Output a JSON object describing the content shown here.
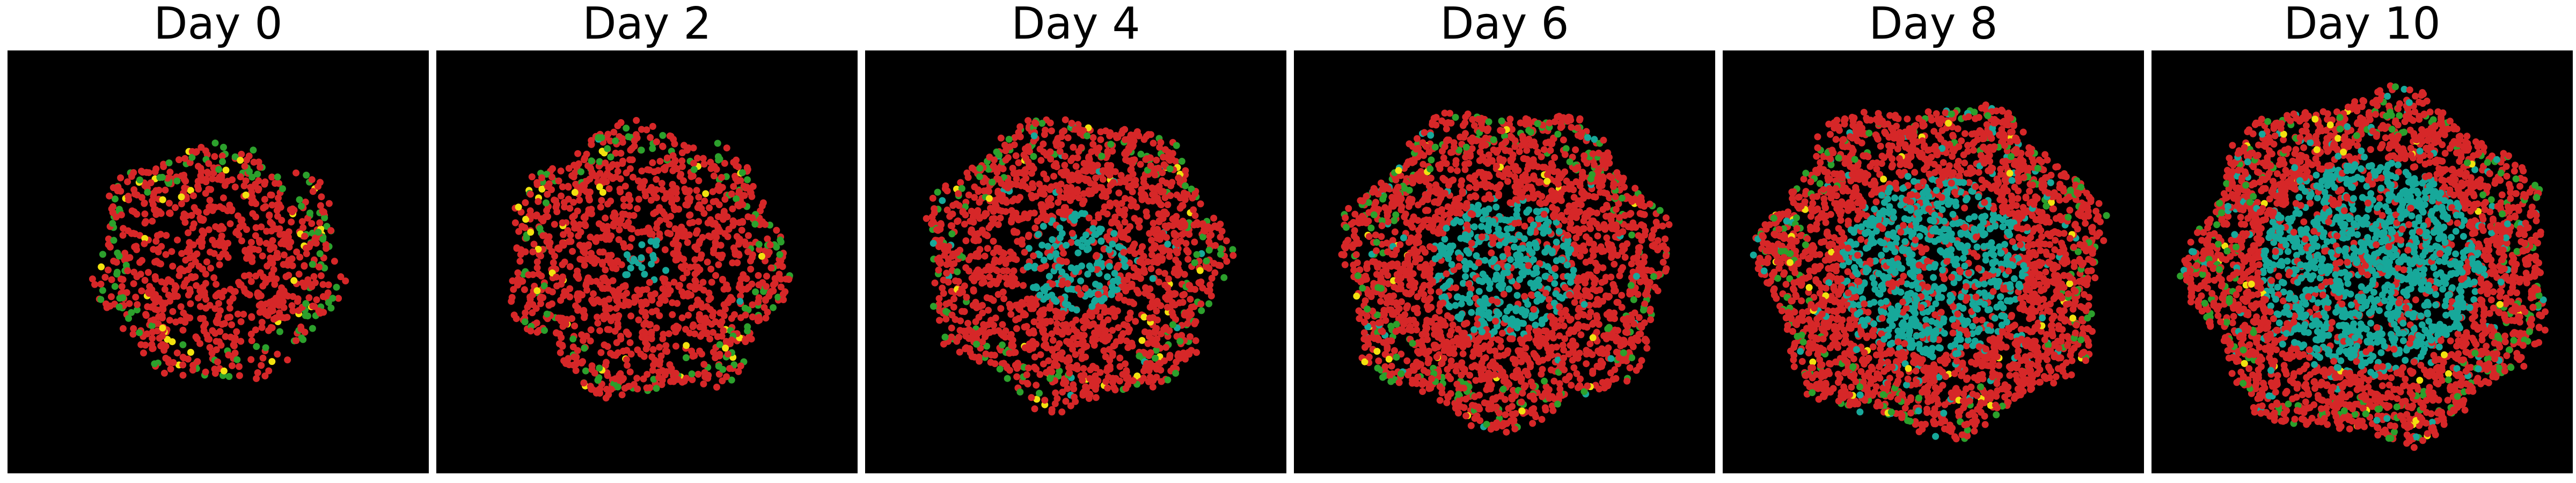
{
  "figure": {
    "panels": [
      {
        "title": "Day 0",
        "colony_radius": 0.29,
        "core_radius": 0.0,
        "cell_count": 900,
        "core_fraction": 0.0,
        "green_fraction": 0.1,
        "yellow_fraction": 0.02
      },
      {
        "title": "Day 2",
        "colony_radius": 0.33,
        "core_radius": 0.06,
        "cell_count": 1300,
        "core_fraction": 0.02,
        "green_fraction": 0.07,
        "yellow_fraction": 0.015
      },
      {
        "title": "Day 4",
        "colony_radius": 0.35,
        "core_radius": 0.12,
        "cell_count": 1800,
        "core_fraction": 0.08,
        "green_fraction": 0.06,
        "yellow_fraction": 0.01
      },
      {
        "title": "Day 6",
        "colony_radius": 0.38,
        "core_radius": 0.17,
        "cell_count": 2400,
        "core_fraction": 0.16,
        "green_fraction": 0.05,
        "yellow_fraction": 0.01
      },
      {
        "title": "Day 8",
        "colony_radius": 0.4,
        "core_radius": 0.22,
        "cell_count": 3000,
        "core_fraction": 0.26,
        "green_fraction": 0.04,
        "yellow_fraction": 0.008
      },
      {
        "title": "Day 10",
        "colony_radius": 0.42,
        "core_radius": 0.26,
        "cell_count": 3400,
        "core_fraction": 0.32,
        "green_fraction": 0.04,
        "yellow_fraction": 0.008
      }
    ],
    "colors": {
      "background": "#000000",
      "red_cell": "#d62728",
      "cyan_cell": "#17a89a",
      "green_cell": "#2ca02c",
      "yellow_cell": "#f2e20f",
      "separator": "#ffffff"
    }
  }
}
